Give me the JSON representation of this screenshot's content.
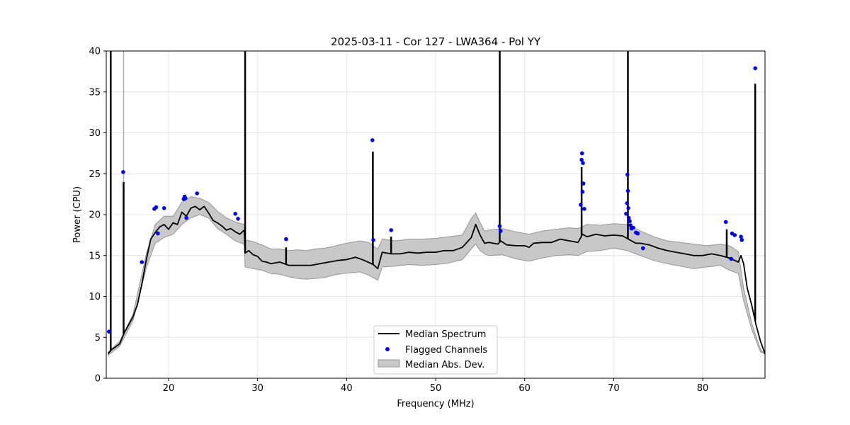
{
  "chart_data": {
    "type": "line",
    "title": "2025-03-11 - Cor 127 - LWA364 - Pol YY",
    "xlabel": "Frequency (MHz)",
    "ylabel": "Power (CPU)",
    "xlim": [
      13.0,
      87.0
    ],
    "ylim": [
      0,
      40
    ],
    "xticks": [
      20,
      30,
      40,
      50,
      60,
      70,
      80
    ],
    "yticks": [
      0,
      5,
      10,
      15,
      20,
      25,
      30,
      35,
      40
    ],
    "grid": true,
    "legend_position": "bottom-center",
    "colors": {
      "median": "#000000",
      "flagged": "#0000ff",
      "mad": "#c8c8c8",
      "mad_edge": "#969696"
    },
    "legend": [
      {
        "label": "Median Spectrum",
        "kind": "line"
      },
      {
        "label": "Flagged Channels",
        "kind": "point"
      },
      {
        "label": "Median Abs. Dev.",
        "kind": "patch"
      }
    ],
    "series": [
      {
        "name": "Median Spectrum",
        "x": [
          13.2,
          13.6,
          14.0,
          14.5,
          15.0,
          15.5,
          16.0,
          16.5,
          17.0,
          17.5,
          18.0,
          18.5,
          19.0,
          19.5,
          20.0,
          20.5,
          21.0,
          21.5,
          22.0,
          22.5,
          23.0,
          23.5,
          24.0,
          24.5,
          25.0,
          25.5,
          26.0,
          26.5,
          27.0,
          27.5,
          28.0,
          28.5,
          28.6,
          29.0,
          29.5,
          30.0,
          30.5,
          31.0,
          31.5,
          32.0,
          32.5,
          33.0,
          33.5,
          34.0,
          35.0,
          36.0,
          37.0,
          38.0,
          39.0,
          40.0,
          41.0,
          42.0,
          43.0,
          43.5,
          44.0,
          45.0,
          46.0,
          47.0,
          48.0,
          49.0,
          50.0,
          51.0,
          52.0,
          53.0,
          54.0,
          54.5,
          55.0,
          55.5,
          56.0,
          57.0,
          57.3,
          58.0,
          59.0,
          60.0,
          60.5,
          61.0,
          62.0,
          63.0,
          64.0,
          65.0,
          66.0,
          66.5,
          67.0,
          68.0,
          69.0,
          70.0,
          71.0,
          71.5,
          72.0,
          72.5,
          73.0,
          74.0,
          75.0,
          76.0,
          77.0,
          78.0,
          79.0,
          80.0,
          81.0,
          82.0,
          83.0,
          84.0,
          84.3,
          84.6,
          85.0,
          85.5,
          86.0,
          86.5,
          87.0
        ],
        "y": [
          3.0,
          3.5,
          3.8,
          4.2,
          5.5,
          6.5,
          7.5,
          9.0,
          11.5,
          14.5,
          17.0,
          17.8,
          18.5,
          18.8,
          18.2,
          19.0,
          18.8,
          20.3,
          19.8,
          20.8,
          21.0,
          20.6,
          21.0,
          20.2,
          19.3,
          19.0,
          18.6,
          18.1,
          18.3,
          17.9,
          17.6,
          18.1,
          15.3,
          15.6,
          15.1,
          14.9,
          14.3,
          14.2,
          14.0,
          14.1,
          14.2,
          14.0,
          13.8,
          13.8,
          13.8,
          13.8,
          14.0,
          14.2,
          14.4,
          14.5,
          14.8,
          14.4,
          13.9,
          13.4,
          15.4,
          15.2,
          15.2,
          15.4,
          15.3,
          15.4,
          15.4,
          15.6,
          15.6,
          16.0,
          17.2,
          18.8,
          17.5,
          16.5,
          16.6,
          16.4,
          16.8,
          16.3,
          16.2,
          16.2,
          16.0,
          16.5,
          16.6,
          16.6,
          17.0,
          16.8,
          16.6,
          17.6,
          17.3,
          17.6,
          17.4,
          17.5,
          17.4,
          17.1,
          16.8,
          16.5,
          16.5,
          16.3,
          15.9,
          15.6,
          15.4,
          15.2,
          15.0,
          15.0,
          15.2,
          15.0,
          14.7,
          14.2,
          15.0,
          14.0,
          11.0,
          9.0,
          6.5,
          4.5,
          3.0
        ]
      },
      {
        "name": "Median Abs. Dev.",
        "x": [
          13.2,
          14.5,
          16.0,
          17.5,
          18.5,
          19.5,
          20.5,
          21.5,
          22.5,
          23.5,
          24.5,
          25.5,
          26.5,
          27.5,
          28.5,
          28.6,
          29.5,
          30.5,
          31.5,
          32.5,
          33.5,
          34.5,
          35.5,
          36.5,
          37.5,
          38.5,
          39.5,
          40.5,
          41.5,
          42.5,
          43.5,
          44.0,
          45.5,
          47.0,
          48.5,
          50.0,
          51.5,
          53.0,
          54.0,
          54.5,
          55.0,
          55.5,
          56.0,
          57.5,
          59.0,
          60.5,
          62.0,
          63.5,
          65.0,
          66.0,
          67.0,
          68.5,
          70.0,
          71.5,
          73.0,
          74.5,
          76.0,
          77.5,
          79.0,
          80.5,
          82.0,
          83.0,
          84.0,
          84.6,
          85.5,
          86.5,
          87.0
        ],
        "upper": [
          3.2,
          4.5,
          7.8,
          15.2,
          18.8,
          19.8,
          19.8,
          21.5,
          22.2,
          22.0,
          21.5,
          20.4,
          19.6,
          19.1,
          18.8,
          16.9,
          16.7,
          16.3,
          15.8,
          15.8,
          15.6,
          15.7,
          15.6,
          15.8,
          15.9,
          16.1,
          16.4,
          16.6,
          16.8,
          16.6,
          15.8,
          17.0,
          16.8,
          17.0,
          17.0,
          17.1,
          17.3,
          17.5,
          19.5,
          20.2,
          19.0,
          18.0,
          18.1,
          18.3,
          17.9,
          17.6,
          18.0,
          18.2,
          18.4,
          18.3,
          18.8,
          18.7,
          18.9,
          18.8,
          18.0,
          17.3,
          16.8,
          16.6,
          16.4,
          16.2,
          16.4,
          16.2,
          15.5,
          11.0,
          6.8,
          3.5,
          3.0
        ],
        "lower": [
          2.8,
          3.9,
          7.0,
          13.5,
          16.5,
          17.2,
          17.6,
          18.8,
          19.6,
          20.0,
          19.6,
          18.3,
          17.6,
          16.8,
          16.4,
          13.6,
          13.4,
          13.2,
          12.8,
          12.7,
          12.4,
          12.2,
          12.1,
          12.2,
          12.3,
          12.6,
          12.8,
          12.9,
          13.0,
          12.6,
          12.0,
          13.6,
          13.7,
          13.9,
          13.8,
          13.9,
          14.1,
          14.5,
          15.8,
          16.4,
          15.6,
          15.2,
          15.0,
          15.1,
          14.6,
          14.3,
          14.7,
          15.0,
          15.1,
          15.0,
          15.5,
          15.6,
          15.9,
          15.6,
          15.0,
          14.4,
          14.0,
          13.7,
          13.4,
          13.6,
          13.8,
          13.2,
          12.8,
          9.5,
          6.0,
          3.2,
          3.0
        ]
      },
      {
        "name": "Flagged Channels",
        "x": [
          13.3,
          14.9,
          17.0,
          18.4,
          18.6,
          18.8,
          19.5,
          21.7,
          21.8,
          21.9,
          22.0,
          23.2,
          27.5,
          27.8,
          33.2,
          42.9,
          43.0,
          45.0,
          57.2,
          57.3,
          66.3,
          66.4,
          66.45,
          66.5,
          66.55,
          66.6,
          66.7,
          71.4,
          71.5,
          71.55,
          71.6,
          71.65,
          71.7,
          71.8,
          71.9,
          72.0,
          72.2,
          72.5,
          72.7,
          73.3,
          82.6,
          83.2,
          83.3,
          83.6,
          84.3,
          84.4,
          85.9
        ],
        "y": [
          5.7,
          25.2,
          14.2,
          20.7,
          20.9,
          17.7,
          20.8,
          21.9,
          22.2,
          22.0,
          19.6,
          22.6,
          20.1,
          19.5,
          17.0,
          29.1,
          16.9,
          18.1,
          18.6,
          18.0,
          21.2,
          26.7,
          27.5,
          22.8,
          26.3,
          23.8,
          20.7,
          20.1,
          21.4,
          24.9,
          22.9,
          20.8,
          19.6,
          19.2,
          18.7,
          18.3,
          18.4,
          17.8,
          17.7,
          15.9,
          19.1,
          14.6,
          17.7,
          17.5,
          17.3,
          16.9,
          37.9
        ]
      }
    ],
    "spikes": [
      {
        "x": 13.5,
        "y": 40
      },
      {
        "x": 14.95,
        "y": 24
      },
      {
        "x": 28.6,
        "y": 40
      },
      {
        "x": 33.2,
        "y": 16
      },
      {
        "x": 42.95,
        "y": 27.7
      },
      {
        "x": 45.0,
        "y": 17.3
      },
      {
        "x": 57.2,
        "y": 40
      },
      {
        "x": 66.4,
        "y": 25.8
      },
      {
        "x": 71.6,
        "y": 40
      },
      {
        "x": 82.7,
        "y": 18.2
      },
      {
        "x": 85.9,
        "y": 36.0
      }
    ]
  }
}
